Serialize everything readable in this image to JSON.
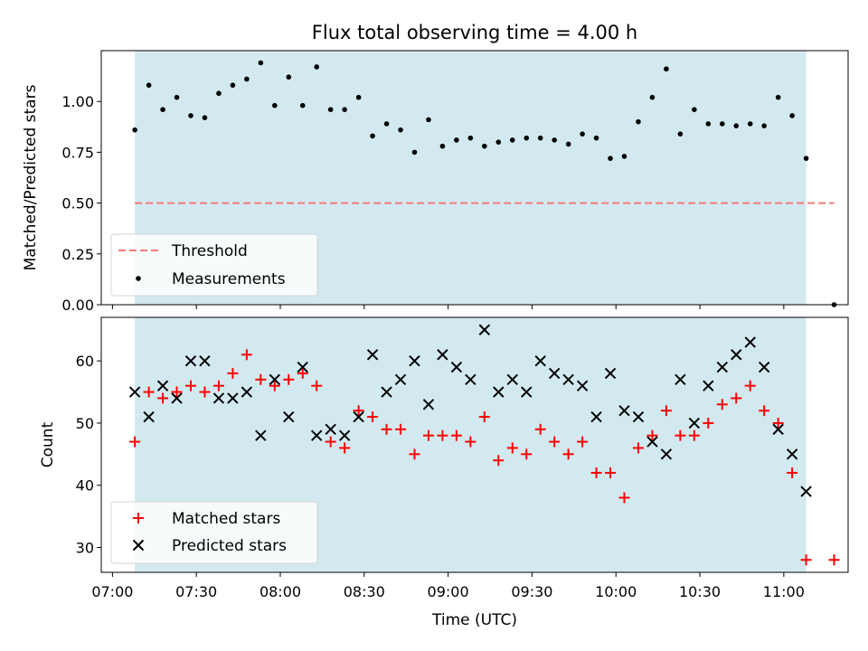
{
  "chart_data": [
    {
      "type": "scatter",
      "title": "Flux total observing time = 4.00 h",
      "xlabel": "",
      "ylabel": "Matched/Predicted stars",
      "ylim": [
        0,
        1.25
      ],
      "yticks": [
        "0.00",
        "0.25",
        "0.50",
        "0.75",
        "1.00"
      ],
      "shaded_span": [
        "07:08",
        "11:08"
      ],
      "shade_color": "#d3e9f0",
      "threshold": {
        "name": "Threshold",
        "value": 0.5,
        "from": "07:08",
        "to": "11:18",
        "color": "#f47a7a"
      },
      "legend": {
        "position": "lower-left",
        "entries": [
          "Threshold",
          "Measurements"
        ]
      },
      "series": [
        {
          "name": "Measurements",
          "marker": "dot",
          "color": "#000000",
          "x": [
            "07:08",
            "07:13",
            "07:18",
            "07:23",
            "07:28",
            "07:33",
            "07:38",
            "07:43",
            "07:48",
            "07:53",
            "07:58",
            "08:03",
            "08:08",
            "08:13",
            "08:18",
            "08:23",
            "08:28",
            "08:33",
            "08:38",
            "08:43",
            "08:48",
            "08:53",
            "08:58",
            "09:03",
            "09:08",
            "09:13",
            "09:18",
            "09:23",
            "09:28",
            "09:33",
            "09:38",
            "09:43",
            "09:48",
            "09:53",
            "09:58",
            "10:03",
            "10:08",
            "10:13",
            "10:18",
            "10:23",
            "10:28",
            "10:33",
            "10:38",
            "10:43",
            "10:48",
            "10:53",
            "10:58",
            "11:03",
            "11:08",
            "11:18"
          ],
          "y": [
            0.86,
            1.08,
            0.96,
            1.02,
            0.93,
            0.92,
            1.04,
            1.08,
            1.11,
            1.19,
            0.98,
            1.12,
            0.98,
            1.17,
            0.96,
            0.96,
            1.02,
            0.83,
            0.89,
            0.86,
            0.75,
            0.91,
            0.78,
            0.81,
            0.82,
            0.78,
            0.8,
            0.81,
            0.82,
            0.82,
            0.81,
            0.79,
            0.84,
            0.82,
            0.72,
            0.73,
            0.9,
            1.02,
            1.16,
            0.84,
            0.96,
            0.89,
            0.89,
            0.88,
            0.89,
            0.88,
            1.02,
            0.93,
            0.72,
            0.0
          ]
        }
      ]
    },
    {
      "type": "scatter",
      "title": "",
      "xlabel": "Time (UTC)",
      "ylabel": "Count",
      "ylim": [
        26,
        67
      ],
      "yticks": [
        "30",
        "40",
        "50",
        "60"
      ],
      "xticks": [
        "07:00",
        "07:30",
        "08:00",
        "08:30",
        "09:00",
        "09:30",
        "10:00",
        "10:30",
        "11:00"
      ],
      "xlim": [
        "06:56",
        "11:23"
      ],
      "shaded_span": [
        "07:08",
        "11:08"
      ],
      "shade_color": "#d3e9f0",
      "legend": {
        "position": "lower-left",
        "entries": [
          "Matched stars",
          "Predicted stars"
        ]
      },
      "series": [
        {
          "name": "Matched stars",
          "marker": "plus",
          "color": "#ff0000",
          "x": [
            "07:08",
            "07:13",
            "07:18",
            "07:23",
            "07:28",
            "07:33",
            "07:38",
            "07:43",
            "07:48",
            "07:53",
            "07:58",
            "08:03",
            "08:08",
            "08:13",
            "08:18",
            "08:23",
            "08:28",
            "08:33",
            "08:38",
            "08:43",
            "08:48",
            "08:53",
            "08:58",
            "09:03",
            "09:08",
            "09:13",
            "09:18",
            "09:23",
            "09:28",
            "09:33",
            "09:38",
            "09:43",
            "09:48",
            "09:53",
            "09:58",
            "10:03",
            "10:08",
            "10:13",
            "10:18",
            "10:23",
            "10:28",
            "10:33",
            "10:38",
            "10:43",
            "10:48",
            "10:53",
            "10:58",
            "11:03",
            "11:08",
            "11:18"
          ],
          "y": [
            47,
            55,
            54,
            55,
            56,
            55,
            56,
            58,
            61,
            57,
            56,
            57,
            58,
            56,
            47,
            46,
            52,
            51,
            49,
            49,
            45,
            48,
            48,
            48,
            47,
            51,
            44,
            46,
            45,
            49,
            47,
            45,
            47,
            42,
            42,
            38,
            46,
            48,
            52,
            48,
            48,
            50,
            53,
            54,
            56,
            52,
            50,
            42,
            28,
            28
          ]
        },
        {
          "name": "Predicted stars",
          "marker": "x",
          "color": "#000000",
          "x": [
            "07:08",
            "07:13",
            "07:18",
            "07:23",
            "07:28",
            "07:33",
            "07:38",
            "07:43",
            "07:48",
            "07:53",
            "07:58",
            "08:03",
            "08:08",
            "08:13",
            "08:18",
            "08:23",
            "08:28",
            "08:33",
            "08:38",
            "08:43",
            "08:48",
            "08:53",
            "08:58",
            "09:03",
            "09:08",
            "09:13",
            "09:18",
            "09:23",
            "09:28",
            "09:33",
            "09:38",
            "09:43",
            "09:48",
            "09:53",
            "09:58",
            "10:03",
            "10:08",
            "10:13",
            "10:18",
            "10:23",
            "10:28",
            "10:33",
            "10:38",
            "10:43",
            "10:48",
            "10:53",
            "10:58",
            "11:03",
            "11:08"
          ],
          "y": [
            55,
            51,
            56,
            54,
            60,
            60,
            54,
            54,
            55,
            48,
            57,
            51,
            59,
            48,
            49,
            48,
            51,
            61,
            55,
            57,
            60,
            53,
            61,
            59,
            57,
            65,
            55,
            57,
            55,
            60,
            58,
            57,
            56,
            51,
            58,
            52,
            51,
            47,
            45,
            57,
            50,
            56,
            59,
            61,
            63,
            59,
            49,
            45,
            39
          ]
        }
      ]
    }
  ]
}
